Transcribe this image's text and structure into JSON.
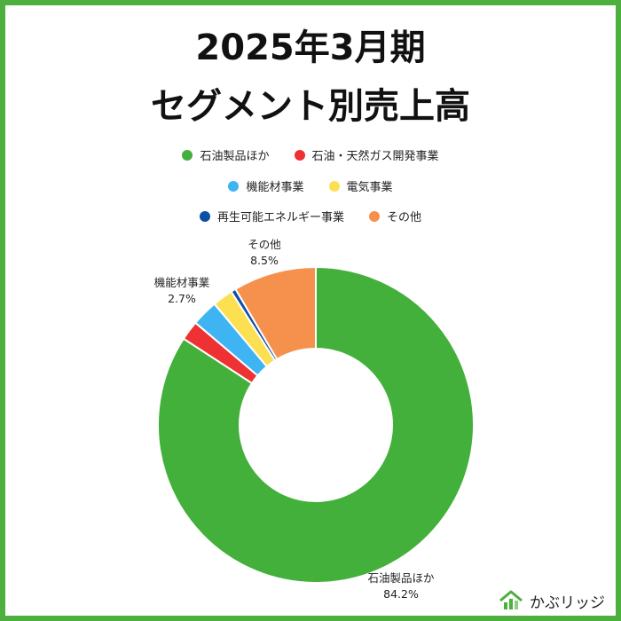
{
  "title_line1": "2025年3月期",
  "title_line2": "セグメント別売上高",
  "brand": {
    "name": "かぶリッジ",
    "logo_icon": "house-chart-icon"
  },
  "colors": {
    "frame": "#4caf3e"
  },
  "chart_data": {
    "type": "pie",
    "donut": true,
    "legend_position": "top",
    "categories": [
      "石油製品ほか",
      "石油・天然ガス開発事業",
      "機能材事業",
      "電気事業",
      "再生可能エネルギー事業",
      "その他"
    ],
    "values": [
      84.2,
      2.0,
      2.7,
      2.1,
      0.5,
      8.5
    ],
    "colors": [
      "#42b03a",
      "#ee3133",
      "#3fb4f2",
      "#fde052",
      "#0b4fa6",
      "#f6914d"
    ],
    "annotations": [
      {
        "category": "その他",
        "label": "その他",
        "value_text": "8.5%"
      },
      {
        "category": "機能材事業",
        "label": "機能材事業",
        "value_text": "2.7%"
      },
      {
        "category": "石油製品ほか",
        "label": "石油製品ほか",
        "value_text": "84.2%"
      }
    ]
  }
}
